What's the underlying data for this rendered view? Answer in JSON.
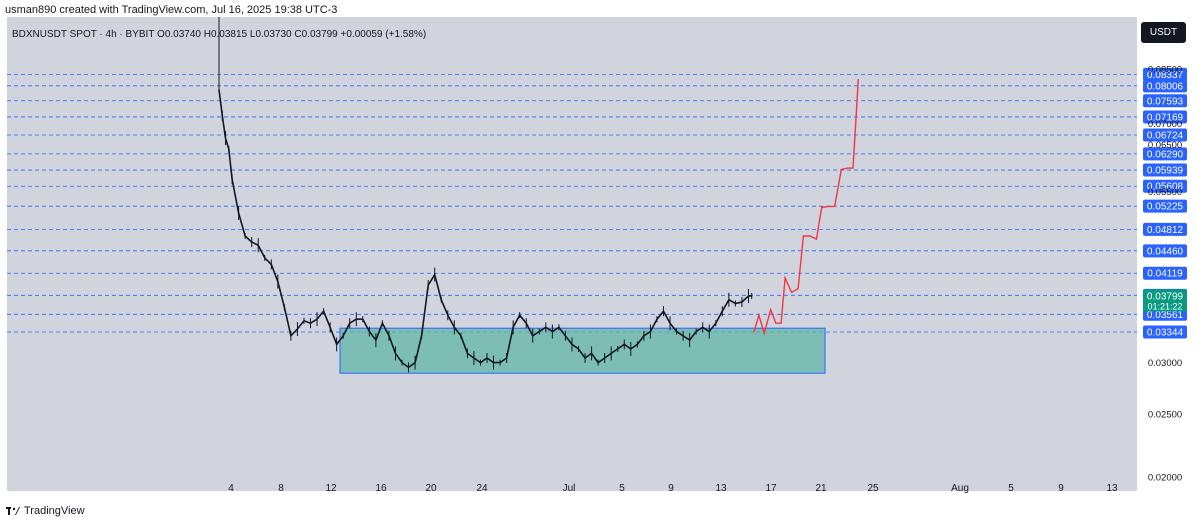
{
  "header": {
    "credit": "usman890 created with TradingView.com, Jul 16, 2025 19:38 UTC-3"
  },
  "symbol": {
    "line": "BDXNUSDT SPOT · 4h · BYBIT  O0.03740 H0.03815 L0.03730 C0.03799 +0.00059 (+1.58%)"
  },
  "currency": "USDT",
  "footer": {
    "brand": "TradingView"
  },
  "colors": {
    "panel": "#d1d4dc",
    "candle": "#131722",
    "level_line": "#2962ff",
    "level_label": "#2962ff",
    "zone_fill": "#5fb7a5",
    "zone_border": "#2962ff",
    "projection": "#f23645",
    "last_price": "#089981"
  },
  "chart_data": {
    "type": "candlestick",
    "x": [
      "4",
      "8",
      "12",
      "16",
      "20",
      "24",
      "Jul",
      "5",
      "9",
      "13",
      "17",
      "21",
      "25",
      "Aug",
      "5",
      "9",
      "13"
    ],
    "y_ticks": [
      "0.08500",
      "0.07000",
      "0.06500",
      "0.05500",
      "0.03000",
      "0.02500",
      "0.02000"
    ],
    "ylim": [
      0.02,
      0.0865
    ],
    "levels": [
      "0.08337",
      "0.08006",
      "0.07593",
      "0.07169",
      "0.06724",
      "0.06290",
      "0.05939",
      "0.05608",
      "0.05225",
      "0.04812",
      "0.04460",
      "0.04119",
      "0.03809",
      "0.03561",
      "0.03344"
    ],
    "last_price": {
      "value": "0.03799",
      "countdown": "01:21:22"
    },
    "zone": {
      "low": 0.0289,
      "high": 0.0339,
      "from": "12",
      "to": "21"
    },
    "price_path": [
      {
        "x": 0.0,
        "y": 0.079
      },
      {
        "x": 0.25,
        "y": 0.072
      },
      {
        "x": 0.5,
        "y": 0.0665
      },
      {
        "x": 0.75,
        "y": 0.064
      },
      {
        "x": 1.0,
        "y": 0.0575
      },
      {
        "x": 1.5,
        "y": 0.051
      },
      {
        "x": 2.0,
        "y": 0.047
      },
      {
        "x": 2.5,
        "y": 0.046
      },
      {
        "x": 3.0,
        "y": 0.0455
      },
      {
        "x": 3.5,
        "y": 0.0435
      },
      {
        "x": 4.0,
        "y": 0.0425
      },
      {
        "x": 4.5,
        "y": 0.04
      },
      {
        "x": 5.0,
        "y": 0.0365
      },
      {
        "x": 5.5,
        "y": 0.033
      },
      {
        "x": 6.0,
        "y": 0.0338
      },
      {
        "x": 6.5,
        "y": 0.0348
      },
      {
        "x": 7.0,
        "y": 0.0345
      },
      {
        "x": 7.5,
        "y": 0.035
      },
      {
        "x": 8.0,
        "y": 0.036
      },
      {
        "x": 8.5,
        "y": 0.034
      },
      {
        "x": 9.0,
        "y": 0.032
      },
      {
        "x": 9.5,
        "y": 0.033
      },
      {
        "x": 10.0,
        "y": 0.0345
      },
      {
        "x": 10.5,
        "y": 0.035
      },
      {
        "x": 11.0,
        "y": 0.035
      },
      {
        "x": 11.5,
        "y": 0.0335
      },
      {
        "x": 12.0,
        "y": 0.0325
      },
      {
        "x": 12.5,
        "y": 0.0345
      },
      {
        "x": 13.0,
        "y": 0.033
      },
      {
        "x": 13.5,
        "y": 0.031
      },
      {
        "x": 14.0,
        "y": 0.03
      },
      {
        "x": 14.5,
        "y": 0.0295
      },
      {
        "x": 15.0,
        "y": 0.03
      },
      {
        "x": 15.5,
        "y": 0.033
      },
      {
        "x": 16.0,
        "y": 0.0395
      },
      {
        "x": 16.5,
        "y": 0.041
      },
      {
        "x": 17.0,
        "y": 0.0375
      },
      {
        "x": 17.5,
        "y": 0.0355
      },
      {
        "x": 18.0,
        "y": 0.034
      },
      {
        "x": 18.5,
        "y": 0.033
      },
      {
        "x": 19.0,
        "y": 0.031
      },
      {
        "x": 19.5,
        "y": 0.0305
      },
      {
        "x": 20.0,
        "y": 0.03
      },
      {
        "x": 20.5,
        "y": 0.0305
      },
      {
        "x": 21.0,
        "y": 0.03
      },
      {
        "x": 21.5,
        "y": 0.03
      },
      {
        "x": 22.0,
        "y": 0.0305
      },
      {
        "x": 22.5,
        "y": 0.034
      },
      {
        "x": 23.0,
        "y": 0.0355
      },
      {
        "x": 23.5,
        "y": 0.0345
      },
      {
        "x": 24.0,
        "y": 0.033
      },
      {
        "x": 24.5,
        "y": 0.0335
      },
      {
        "x": 25.0,
        "y": 0.034
      },
      {
        "x": 25.5,
        "y": 0.0335
      },
      {
        "x": 26.0,
        "y": 0.034
      },
      {
        "x": 26.5,
        "y": 0.033
      },
      {
        "x": 27.0,
        "y": 0.032
      },
      {
        "x": 27.5,
        "y": 0.0315
      },
      {
        "x": 28.0,
        "y": 0.0305
      },
      {
        "x": 28.5,
        "y": 0.031
      },
      {
        "x": 29.0,
        "y": 0.03
      },
      {
        "x": 29.5,
        "y": 0.0305
      },
      {
        "x": 30.0,
        "y": 0.031
      },
      {
        "x": 30.5,
        "y": 0.0315
      },
      {
        "x": 31.0,
        "y": 0.032
      },
      {
        "x": 31.5,
        "y": 0.0315
      },
      {
        "x": 32.0,
        "y": 0.032
      },
      {
        "x": 32.5,
        "y": 0.033
      },
      {
        "x": 33.0,
        "y": 0.0335
      },
      {
        "x": 33.5,
        "y": 0.035
      },
      {
        "x": 34.0,
        "y": 0.036
      },
      {
        "x": 34.5,
        "y": 0.0345
      },
      {
        "x": 35.0,
        "y": 0.0335
      },
      {
        "x": 35.5,
        "y": 0.033
      },
      {
        "x": 36.0,
        "y": 0.0325
      },
      {
        "x": 36.5,
        "y": 0.0335
      },
      {
        "x": 37.0,
        "y": 0.034
      },
      {
        "x": 37.5,
        "y": 0.0335
      },
      {
        "x": 38.0,
        "y": 0.0345
      },
      {
        "x": 38.5,
        "y": 0.036
      },
      {
        "x": 39.0,
        "y": 0.0375
      },
      {
        "x": 39.5,
        "y": 0.037
      },
      {
        "x": 40.0,
        "y": 0.0372
      },
      {
        "x": 40.5,
        "y": 0.038
      },
      {
        "x": 40.75,
        "y": 0.038
      }
    ],
    "projection": [
      {
        "x": 40.9,
        "y": 0.0334
      },
      {
        "x": 41.3,
        "y": 0.0355
      },
      {
        "x": 41.7,
        "y": 0.0333
      },
      {
        "x": 42.2,
        "y": 0.0362
      },
      {
        "x": 42.6,
        "y": 0.0345
      },
      {
        "x": 43.0,
        "y": 0.0345
      },
      {
        "x": 43.3,
        "y": 0.0405
      },
      {
        "x": 43.8,
        "y": 0.0385
      },
      {
        "x": 44.3,
        "y": 0.039
      },
      {
        "x": 44.7,
        "y": 0.047
      },
      {
        "x": 45.2,
        "y": 0.047
      },
      {
        "x": 45.7,
        "y": 0.0465
      },
      {
        "x": 46.1,
        "y": 0.052
      },
      {
        "x": 46.6,
        "y": 0.0522
      },
      {
        "x": 47.1,
        "y": 0.0522
      },
      {
        "x": 47.6,
        "y": 0.0595
      },
      {
        "x": 48.1,
        "y": 0.0598
      },
      {
        "x": 48.5,
        "y": 0.0598
      },
      {
        "x": 48.7,
        "y": 0.07
      },
      {
        "x": 48.9,
        "y": 0.082
      }
    ]
  }
}
